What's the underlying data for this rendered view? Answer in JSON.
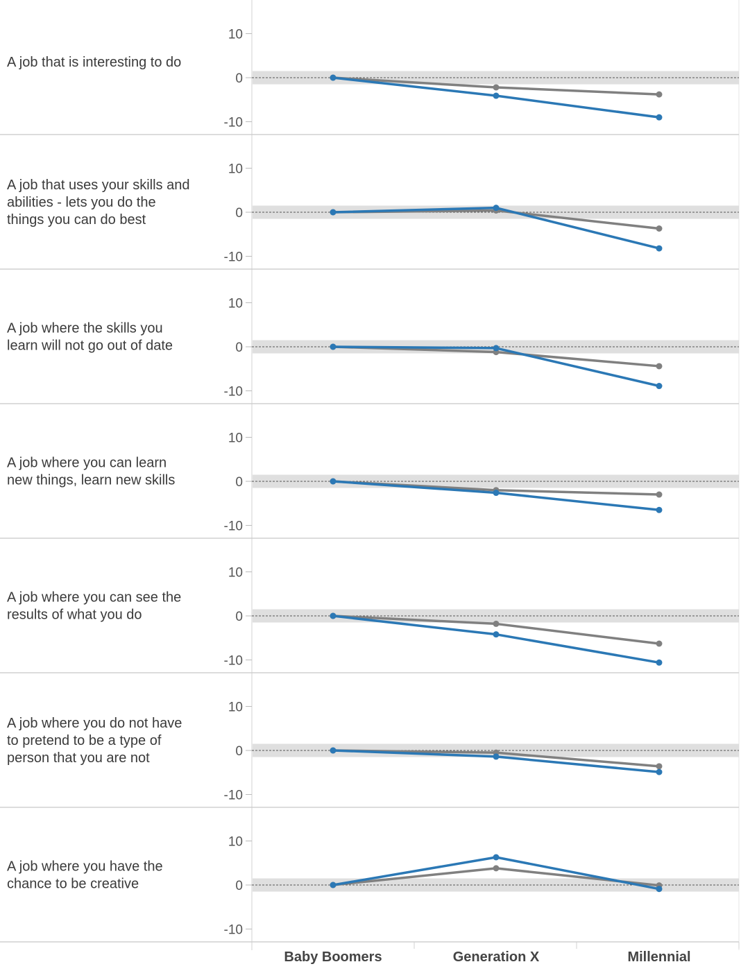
{
  "chart_data": {
    "type": "line",
    "categories": [
      "Baby Boomers",
      "Generation X",
      "Millennial"
    ],
    "y_ticks": [
      10,
      0,
      -10
    ],
    "ylim": [
      -13,
      15
    ],
    "reference_band": [
      -1.5,
      1.5
    ],
    "grid": false,
    "legend": "none",
    "colors": {
      "blue": "#2b78b5",
      "gray": "#808080",
      "band": "#d9d9d9"
    },
    "panels": [
      {
        "label": [
          "A job that is interesting to do"
        ],
        "series": [
          {
            "color": "gray",
            "values": [
              0,
              -2.2,
              -3.8
            ]
          },
          {
            "color": "blue",
            "values": [
              0,
              -4.1,
              -9.0
            ]
          }
        ]
      },
      {
        "label": [
          "A job that uses your skills and",
          "abilities - lets you do the",
          "things you can do best"
        ],
        "series": [
          {
            "color": "gray",
            "values": [
              0,
              0.4,
              -3.7
            ]
          },
          {
            "color": "blue",
            "values": [
              0,
              1.0,
              -8.2
            ]
          }
        ]
      },
      {
        "label": [
          "A job where the skills you",
          "learn will not go out of date"
        ],
        "series": [
          {
            "color": "gray",
            "values": [
              0,
              -1.2,
              -4.4
            ]
          },
          {
            "color": "blue",
            "values": [
              0,
              -0.3,
              -8.9
            ]
          }
        ]
      },
      {
        "label": [
          "A job where you can learn",
          "new things, learn new skills"
        ],
        "series": [
          {
            "color": "gray",
            "values": [
              0,
              -2.0,
              -3.0
            ]
          },
          {
            "color": "blue",
            "values": [
              0,
              -2.6,
              -6.5
            ]
          }
        ]
      },
      {
        "label": [
          "A job where you can see the",
          "results of what you do"
        ],
        "series": [
          {
            "color": "gray",
            "values": [
              0,
              -1.8,
              -6.3
            ]
          },
          {
            "color": "blue",
            "values": [
              0,
              -4.2,
              -10.6
            ]
          }
        ]
      },
      {
        "label": [
          "A job where you do not have",
          "to pretend to be a type of",
          "person that you are not"
        ],
        "series": [
          {
            "color": "gray",
            "values": [
              0,
              -0.5,
              -3.6
            ]
          },
          {
            "color": "blue",
            "values": [
              0,
              -1.4,
              -4.9
            ]
          }
        ]
      },
      {
        "label": [
          "A job where you have the",
          "chance to be creative"
        ],
        "series": [
          {
            "color": "gray",
            "values": [
              0,
              3.8,
              -0.1
            ]
          },
          {
            "color": "blue",
            "values": [
              0,
              6.3,
              -0.9
            ]
          }
        ]
      }
    ]
  }
}
